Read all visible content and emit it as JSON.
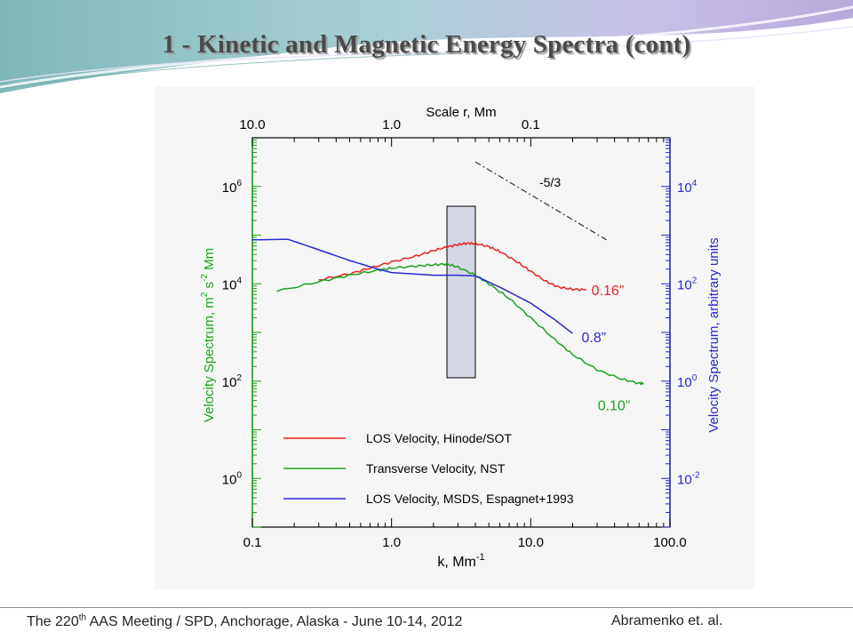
{
  "slide": {
    "title": "1 - Kinetic and Magnetic Energy Spectra (cont)",
    "footer": {
      "meeting_pre": "The 220",
      "meeting_sup": "th",
      "meeting_post": " AAS Meeting / SPD, Anchorage, Alaska  -  June 10-14, 2012",
      "authors": "Abramenko  et. al."
    }
  },
  "chart_data": {
    "type": "line",
    "xscale": "log",
    "xlim": [
      0.1,
      100
    ],
    "xlabel": "k, Mm",
    "xlabel_sup": "-1",
    "xticks": [
      "0.1",
      "1.0",
      "10.0",
      "100.0"
    ],
    "top_axis": {
      "label": "Scale r,  Mm",
      "ticks": [
        "10.0",
        "1.0",
        "0.1"
      ]
    },
    "y_left": {
      "scale": "log",
      "ylim": [
        0.1,
        10000000
      ],
      "label_parts": [
        "Velocity Spectrum, m",
        "2",
        " s",
        "-2",
        " Mm"
      ],
      "ticks": [
        [
          "10",
          "0"
        ],
        [
          "10",
          "2"
        ],
        [
          "10",
          "4"
        ],
        [
          "10",
          "6"
        ]
      ],
      "color": "#1fa01f"
    },
    "y_right": {
      "scale": "log",
      "ylim": [
        0.001,
        100000
      ],
      "label": "Velocity Spectrum, arbitrary units",
      "ticks": [
        [
          "10",
          "-2"
        ],
        [
          "10",
          "0"
        ],
        [
          "10",
          "2"
        ],
        [
          "10",
          "4"
        ]
      ],
      "color": "#2828d0"
    },
    "series": [
      {
        "name": "LOS Velocity, Hinode/SOT",
        "color": "#e8231f",
        "axis": "left",
        "points": [
          [
            0.3,
            12000
          ],
          [
            0.5,
            16000
          ],
          [
            0.7,
            21000
          ],
          [
            1.0,
            28000
          ],
          [
            1.5,
            37000
          ],
          [
            2.0,
            48000
          ],
          [
            2.5,
            57000
          ],
          [
            3.0,
            64000
          ],
          [
            3.5,
            68000
          ],
          [
            4.0,
            67000
          ],
          [
            5.0,
            58000
          ],
          [
            6.0,
            46000
          ],
          [
            8.0,
            28000
          ],
          [
            10.0,
            18000
          ],
          [
            13.0,
            11000
          ],
          [
            16.0,
            8500
          ],
          [
            20.0,
            7700
          ],
          [
            25.0,
            7500
          ]
        ],
        "end_label": "0.16”"
      },
      {
        "name": "Transverse Velocity, NST",
        "color": "#1fa01f",
        "axis": "left",
        "points": [
          [
            0.15,
            7000
          ],
          [
            0.3,
            11000
          ],
          [
            0.5,
            15000
          ],
          [
            0.8,
            19000
          ],
          [
            1.0,
            21000
          ],
          [
            1.5,
            23000
          ],
          [
            2.0,
            24500
          ],
          [
            2.5,
            25500
          ],
          [
            3.0,
            22000
          ],
          [
            4.0,
            15000
          ],
          [
            5.0,
            10000
          ],
          [
            7.0,
            5000
          ],
          [
            10.0,
            2000
          ],
          [
            15.0,
            700
          ],
          [
            20.0,
            350
          ],
          [
            30.0,
            170
          ],
          [
            45.0,
            110
          ],
          [
            60.0,
            90
          ],
          [
            65.0,
            90
          ]
        ],
        "end_label": "0.10”"
      },
      {
        "name": "LOS Velocity, MSDS, Espagnet+1993",
        "color": "#2828d0",
        "axis": "right",
        "points": [
          [
            0.1,
            800
          ],
          [
            0.18,
            820
          ],
          [
            0.3,
            500
          ],
          [
            0.5,
            300
          ],
          [
            0.8,
            200
          ],
          [
            1.0,
            170
          ],
          [
            2.0,
            150
          ],
          [
            3.0,
            150
          ],
          [
            4.0,
            145
          ],
          [
            6.0,
            85
          ],
          [
            10.0,
            40
          ],
          [
            15.0,
            18
          ],
          [
            20.0,
            9.5
          ]
        ],
        "end_label": "0.8”"
      }
    ],
    "reference_line": {
      "label": "-5/3",
      "points": [
        [
          4.0,
          3200000
        ],
        [
          35.0,
          80000
        ]
      ]
    },
    "highlight_band": {
      "k_range": [
        2.5,
        4.0
      ]
    },
    "legend": {
      "position": "bottom-right",
      "entries": [
        "LOS Velocity, Hinode/SOT",
        "Transverse Velocity, NST",
        "LOS Velocity, MSDS, Espagnet+1993"
      ]
    }
  }
}
